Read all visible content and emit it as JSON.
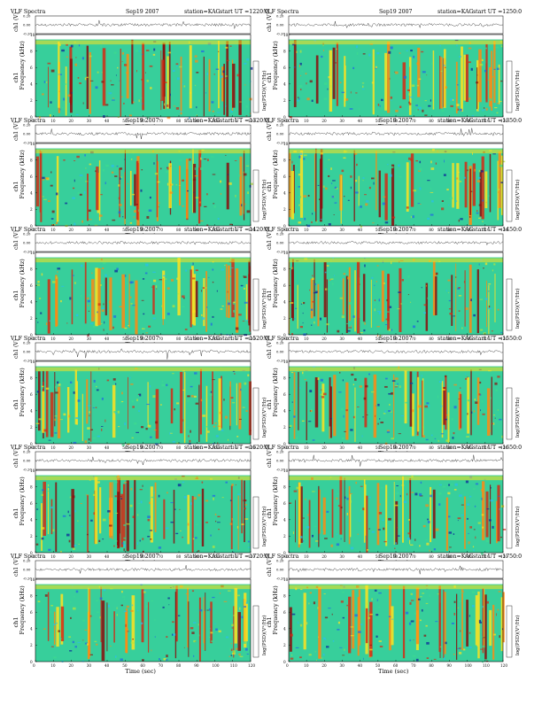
{
  "common": {
    "program": "VLF Spectra",
    "date": "Sep19 2007",
    "station": "station=KAG",
    "start_prefix": "start UT =",
    "waveform_ylabel": "ch1 (V)",
    "waveform_ticks": [
      "0.20",
      "0.00",
      "-0.20"
    ],
    "freq_ylabel_line1": "ch1",
    "freq_ylabel_line2": "Frequency (kHz)",
    "freq_ticks": [
      "0",
      "2",
      "4",
      "6",
      "8",
      "10"
    ],
    "time_xlabel": "Time (sec)",
    "time_ticks": [
      "0",
      "10",
      "20",
      "30",
      "40",
      "50",
      "60",
      "70",
      "80",
      "90",
      "100",
      "110",
      "120"
    ],
    "colorbar_label": "log(PSD)(V²/Hz)"
  },
  "colors": {
    "scale": [
      "#0a1c9a",
      "#1f62e8",
      "#29bdf0",
      "#3ddb8e",
      "#b8e43a",
      "#ffe21e",
      "#ff8a12",
      "#d42a14",
      "#8a0c0c"
    ],
    "background": "#ffffff",
    "ink": "#000000"
  },
  "chart_data": [
    {
      "type": "heatmap",
      "start_ut": "1220:0",
      "xlim": [
        0,
        120
      ],
      "ylim": [
        0,
        10
      ],
      "waveform_ylim": [
        -0.2,
        0.2
      ]
    },
    {
      "type": "heatmap",
      "start_ut": "1250:0",
      "xlim": [
        0,
        120
      ],
      "ylim": [
        0,
        10
      ],
      "waveform_ylim": [
        -0.2,
        0.2
      ]
    },
    {
      "type": "heatmap",
      "start_ut": "1320:0",
      "xlim": [
        0,
        120
      ],
      "ylim": [
        0,
        10
      ],
      "waveform_ylim": [
        -0.2,
        0.2
      ]
    },
    {
      "type": "heatmap",
      "start_ut": "1350:0",
      "xlim": [
        0,
        120
      ],
      "ylim": [
        0,
        10
      ],
      "waveform_ylim": [
        -0.2,
        0.2
      ]
    },
    {
      "type": "heatmap",
      "start_ut": "1420:0",
      "xlim": [
        0,
        120
      ],
      "ylim": [
        0,
        10
      ],
      "waveform_ylim": [
        -0.2,
        0.2
      ]
    },
    {
      "type": "heatmap",
      "start_ut": "1450:0",
      "xlim": [
        0,
        120
      ],
      "ylim": [
        0,
        10
      ],
      "waveform_ylim": [
        -0.2,
        0.2
      ]
    },
    {
      "type": "heatmap",
      "start_ut": "1520:0",
      "xlim": [
        0,
        120
      ],
      "ylim": [
        0,
        10
      ],
      "waveform_ylim": [
        -0.2,
        0.2
      ]
    },
    {
      "type": "heatmap",
      "start_ut": "1550:0",
      "xlim": [
        0,
        120
      ],
      "ylim": [
        0,
        10
      ],
      "waveform_ylim": [
        -0.2,
        0.2
      ]
    },
    {
      "type": "heatmap",
      "start_ut": "1620:0",
      "xlim": [
        0,
        120
      ],
      "ylim": [
        0,
        10
      ],
      "waveform_ylim": [
        -0.2,
        0.2
      ]
    },
    {
      "type": "heatmap",
      "start_ut": "1650:0",
      "xlim": [
        0,
        120
      ],
      "ylim": [
        0,
        10
      ],
      "waveform_ylim": [
        -0.2,
        0.2
      ]
    },
    {
      "type": "heatmap",
      "start_ut": "1720:0",
      "xlim": [
        0,
        120
      ],
      "ylim": [
        0,
        10
      ],
      "waveform_ylim": [
        -0.2,
        0.2
      ]
    },
    {
      "type": "heatmap",
      "start_ut": "1750:0",
      "xlim": [
        0,
        120
      ],
      "ylim": [
        0,
        10
      ],
      "waveform_ylim": [
        -0.2,
        0.2
      ]
    }
  ]
}
